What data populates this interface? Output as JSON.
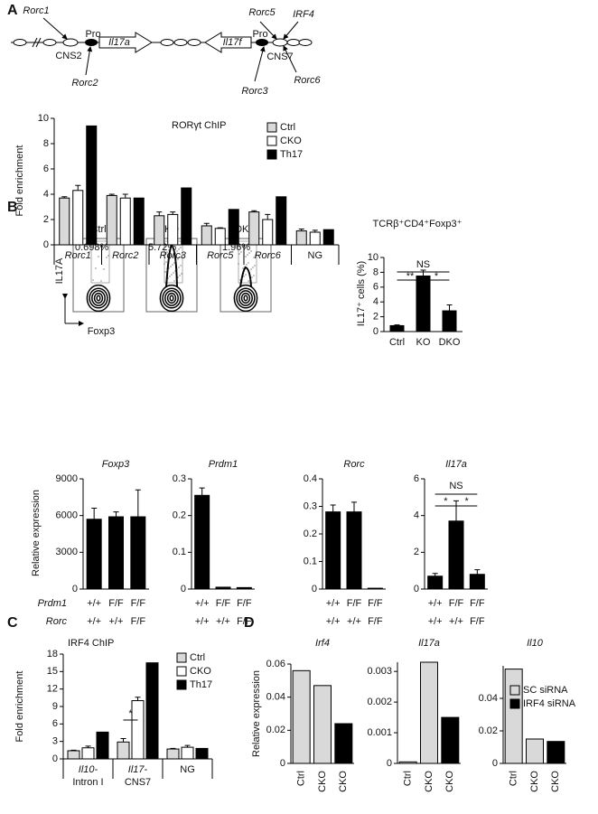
{
  "panels": [
    "A",
    "B",
    "C",
    "D"
  ],
  "diagram": {
    "labels": [
      "Rorc1",
      "Rorc5",
      "IRF4",
      "Pro",
      "Il17a",
      "Il17f",
      "Pro",
      "CNS2",
      "CNS7",
      "Rorc2",
      "Rorc3",
      "Rorc6"
    ]
  },
  "flow": {
    "plots": [
      {
        "name": "Ctrl",
        "percent": "0.698%"
      },
      {
        "name": "KO",
        "percent": "5.72%"
      },
      {
        "name": "DKO",
        "percent": "1.96%"
      }
    ],
    "y_label": "IL17A",
    "x_label": "Foxp3"
  },
  "genotypes": [
    {
      "name": "Prdm1",
      "values": [
        "+/+",
        "F/F",
        "F/F"
      ]
    },
    {
      "name": "Rorc",
      "values": [
        "+/+",
        "+/+",
        "F/F"
      ]
    }
  ],
  "chart_data": [
    {
      "type": "bar",
      "title": "RORγt ChIP",
      "y_label": "Fold enrichment",
      "categories": [
        "Rorc1",
        "Rorc2",
        "Rorc3",
        "Rorc5",
        "Rorc6",
        "NG"
      ],
      "series": [
        {
          "name": "Ctrl",
          "color": "#d9d9d9",
          "values": [
            3.7,
            3.9,
            2.3,
            1.5,
            2.6,
            1.1
          ],
          "errors": [
            0.1,
            0.1,
            0.3,
            0.2,
            0.1,
            0.15
          ]
        },
        {
          "name": "CKO",
          "color": "#ffffff",
          "values": [
            4.3,
            3.7,
            2.4,
            1.3,
            2.0,
            1.0
          ],
          "errors": [
            0.4,
            0.3,
            0.2,
            0.05,
            0.4,
            0.15
          ]
        },
        {
          "name": "Th17",
          "color": "#000000",
          "values": [
            9.4,
            3.7,
            4.5,
            2.8,
            3.8,
            1.2
          ]
        }
      ],
      "ylim": [
        0,
        10
      ],
      "yticks": [
        0,
        2,
        4,
        6,
        8,
        10
      ],
      "legend": "top-right"
    },
    {
      "type": "bar",
      "title": "TCRβ⁺CD4⁺Foxp3⁺",
      "y_label": "IL17⁺ cells (%)",
      "categories": [
        "Ctrl",
        "KO",
        "DKO"
      ],
      "values": [
        0.8,
        7.5,
        2.8
      ],
      "errors": [
        0.1,
        0.8,
        0.8
      ],
      "color": "#000000",
      "ylim": [
        0,
        10
      ],
      "yticks": [
        0,
        2,
        4,
        6,
        8,
        10
      ],
      "annotations": [
        "NS",
        "**",
        "*"
      ]
    },
    {
      "type": "bar",
      "title": "Foxp3",
      "y_label": "Relative expression",
      "values": [
        5700,
        5900,
        5900
      ],
      "errors": [
        900,
        400,
        2200
      ],
      "color": "#000000",
      "ylim": [
        0,
        9000
      ],
      "yticks": [
        0,
        3000,
        6000,
        9000
      ]
    },
    {
      "type": "bar",
      "title": "Prdm1",
      "values": [
        0.255,
        0.005,
        0.004
      ],
      "errors": [
        0.02,
        null,
        null
      ],
      "color": "#000000",
      "ylim": [
        0,
        0.3
      ],
      "yticks": [
        0,
        0.1,
        0.2,
        0.3
      ]
    },
    {
      "type": "bar",
      "title": "Rorc",
      "values": [
        0.28,
        0.28,
        0.003
      ],
      "errors": [
        0.025,
        0.035,
        null
      ],
      "color": "#000000",
      "ylim": [
        0,
        0.4
      ],
      "yticks": [
        0,
        0.1,
        0.2,
        0.3,
        0.4
      ]
    },
    {
      "type": "bar",
      "title": "Il17a",
      "values": [
        0.7,
        3.7,
        0.8
      ],
      "errors": [
        0.15,
        1.1,
        0.25
      ],
      "color": "#000000",
      "ylim": [
        0,
        6
      ],
      "yticks": [
        0,
        2,
        4,
        6
      ],
      "annotations": [
        "NS",
        "*",
        "*"
      ]
    },
    {
      "type": "bar",
      "title": "IRF4 ChIP",
      "y_label": "Fold enrichment",
      "categories": [
        [
          "Il10-",
          "Intron I"
        ],
        [
          "Il17-",
          "CNS7"
        ],
        [
          "NG"
        ]
      ],
      "series": [
        {
          "name": "Ctrl",
          "color": "#d9d9d9",
          "values": [
            1.4,
            2.9,
            1.7
          ],
          "errors": [
            0.1,
            0.6,
            0.1
          ]
        },
        {
          "name": "CKO",
          "color": "#ffffff",
          "values": [
            1.9,
            10,
            2.0
          ],
          "errors": [
            0.3,
            0.6,
            0.3
          ]
        },
        {
          "name": "Th17",
          "color": "#000000",
          "values": [
            4.6,
            16.5,
            1.8
          ]
        }
      ],
      "ylim": [
        0,
        18
      ],
      "yticks": [
        0,
        3,
        6,
        9,
        12,
        15,
        18
      ],
      "legend": "top-right",
      "annotations": [
        "*"
      ]
    },
    {
      "type": "bar",
      "title": "Irf4",
      "y_label": "Relative expression",
      "categories": [
        "Ctrl",
        "CKO",
        "CKO"
      ],
      "values": [
        0.056,
        0.047,
        0.024
      ],
      "colors": [
        "#d9d9d9",
        "#d9d9d9",
        "#000000"
      ],
      "ylim": [
        0,
        0.06
      ],
      "yticks": [
        0,
        0.02,
        0.04,
        0.06
      ]
    },
    {
      "type": "bar",
      "title": "Il17a",
      "categories": [
        "Ctrl",
        "CKO",
        "CKO"
      ],
      "values": [
        5e-05,
        0.0033,
        0.0015
      ],
      "colors": [
        "#d9d9d9",
        "#d9d9d9",
        "#000000"
      ],
      "ylim": [
        0,
        0.0033
      ],
      "yticks": [
        0,
        0.001,
        0.002,
        0.003
      ]
    },
    {
      "type": "bar",
      "title": "Il10",
      "categories": [
        "Ctrl",
        "CKO",
        "CKO"
      ],
      "values": [
        0.058,
        0.015,
        0.0135
      ],
      "colors": [
        "#d9d9d9",
        "#d9d9d9",
        "#000000"
      ],
      "ylim": [
        0,
        0.06
      ],
      "yticks": [
        0,
        0.02,
        0.04
      ],
      "legend_items": [
        {
          "name": "SC siRNA",
          "color": "#d9d9d9"
        },
        {
          "name": "IRF4 siRNA",
          "color": "#000000"
        }
      ]
    }
  ]
}
